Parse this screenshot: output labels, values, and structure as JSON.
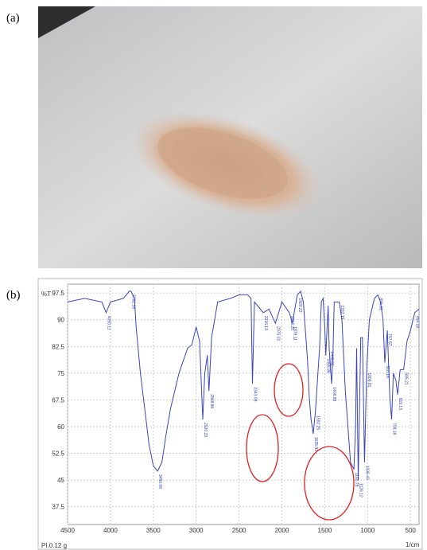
{
  "panel_a_label": "(a)",
  "chart_data": {
    "type": "line",
    "panel_label": "(b)",
    "y_label": "%T",
    "x_label": "1/cm",
    "note": "PI.0.12 g",
    "color": "#3a46b8",
    "x": [
      4500,
      4300,
      4100,
      4050,
      4000,
      3850,
      3780,
      3760,
      3720,
      3700,
      3650,
      3600,
      3550,
      3500,
      3450,
      3400,
      3350,
      3300,
      3200,
      3100,
      3050,
      3000,
      2960,
      2923,
      2900,
      2870,
      2851,
      2820,
      2750,
      2600,
      2500,
      2400,
      2360,
      2343,
      2320,
      2216,
      2150,
      2075,
      2000,
      1913,
      1878,
      1820,
      1780,
      1750,
      1720,
      1700,
      1680,
      1660,
      1635,
      1610,
      1580,
      1560,
      1540,
      1520,
      1500,
      1488,
      1460,
      1448,
      1420,
      1405,
      1390,
      1330,
      1300,
      1260,
      1200,
      1160,
      1140,
      1128,
      1110,
      1080,
      1060,
      1036,
      1010,
      980,
      920,
      880,
      850,
      820,
      800,
      770,
      740,
      720,
      700,
      670,
      650,
      620,
      580,
      540,
      500,
      450,
      400
    ],
    "values": [
      95,
      96,
      95,
      92,
      95,
      96,
      98,
      98,
      96,
      88,
      75,
      65,
      55,
      49,
      47.5,
      50,
      58,
      65,
      75,
      82,
      83,
      88,
      84,
      62,
      75,
      80,
      70,
      85,
      95,
      96,
      97,
      97,
      96,
      72,
      95,
      92,
      93,
      89,
      95,
      92,
      89,
      97,
      98,
      95,
      85,
      78,
      68,
      62,
      58,
      64,
      75,
      82,
      95,
      96,
      88,
      80,
      94,
      82,
      72,
      80,
      95,
      95,
      90,
      70,
      50,
      48,
      60,
      82,
      45,
      85,
      85,
      50,
      76,
      90,
      96,
      97,
      95,
      90,
      78,
      87,
      68,
      62,
      75,
      73,
      69,
      76,
      76,
      84,
      87,
      92,
      93
    ],
    "xlim": [
      4500,
      400
    ],
    "xticks": [
      4500,
      4000,
      3500,
      3000,
      2500,
      2000,
      1500,
      1000,
      500
    ],
    "ylim": [
      32.5,
      100
    ],
    "yticks": [
      97.5,
      90,
      82.5,
      75,
      67.5,
      60,
      52.5,
      45,
      37.5
    ],
    "grid": true,
    "annotations": [
      {
        "x": 4050,
        "y": 92,
        "label": "4050.11"
      },
      {
        "x": 3761,
        "y": 98,
        "label": "3761.18"
      },
      {
        "x": 3450,
        "y": 47.5,
        "label": "3450.08"
      },
      {
        "x": 2923,
        "y": 62,
        "label": "2920.23"
      },
      {
        "x": 2851,
        "y": 70,
        "label": "2848.86"
      },
      {
        "x": 2343,
        "y": 72,
        "label": "2343.08"
      },
      {
        "x": 2216,
        "y": 92,
        "label": "2216.13"
      },
      {
        "x": 2075,
        "y": 89,
        "label": "2075.31"
      },
      {
        "x": 1913,
        "y": 92,
        "label": "1913.20"
      },
      {
        "x": 1878,
        "y": 89,
        "label": "1878.11"
      },
      {
        "x": 1820,
        "y": 97,
        "label": "1820.22"
      },
      {
        "x": 1635,
        "y": 58,
        "label": "1635.81"
      },
      {
        "x": 1610,
        "y": 64,
        "label": "1592.25"
      },
      {
        "x": 1488,
        "y": 80,
        "label": "1488.96"
      },
      {
        "x": 1448,
        "y": 82,
        "label": "1448.81"
      },
      {
        "x": 1420,
        "y": 72,
        "label": "1406.89"
      },
      {
        "x": 1330,
        "y": 95,
        "label": "1332.15"
      },
      {
        "x": 1160,
        "y": 48,
        "label": "1160.78"
      },
      {
        "x": 1110,
        "y": 45,
        "label": "1126.12"
      },
      {
        "x": 1036,
        "y": 50,
        "label": "1036.43"
      },
      {
        "x": 1010,
        "y": 76,
        "label": "1006.81"
      },
      {
        "x": 880,
        "y": 97,
        "label": "896.31"
      },
      {
        "x": 800,
        "y": 78,
        "label": "810.18"
      },
      {
        "x": 770,
        "y": 87,
        "label": "767.67"
      },
      {
        "x": 720,
        "y": 62,
        "label": "708.18"
      },
      {
        "x": 650,
        "y": 69,
        "label": "619.13"
      },
      {
        "x": 580,
        "y": 76,
        "label": "586.21"
      },
      {
        "x": 450,
        "y": 92,
        "label": "464.18"
      }
    ]
  }
}
